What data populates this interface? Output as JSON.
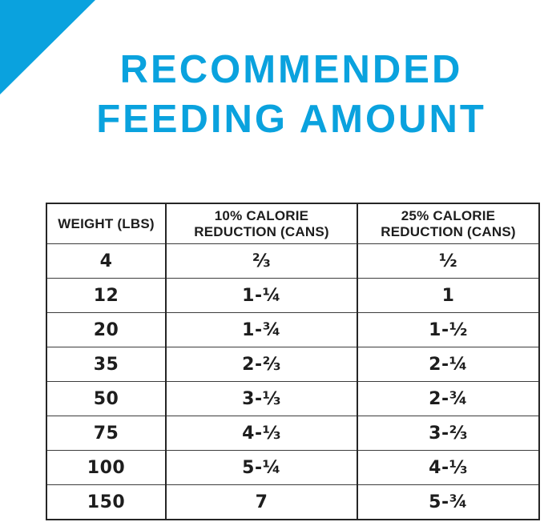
{
  "colors": {
    "accent": "#0aa2de",
    "table_text": "#1d1d1d",
    "table_border": "#262626"
  },
  "title": {
    "line1": "RECOMMENDED",
    "line2": "FEEDING AMOUNT"
  },
  "table": {
    "headers": [
      {
        "lines": [
          "WEIGHT (LBS)"
        ]
      },
      {
        "lines": [
          "10% CALORIE",
          "REDUCTION (CANS)"
        ]
      },
      {
        "lines": [
          "25% CALORIE",
          "REDUCTION (CANS)"
        ]
      }
    ],
    "rows": [
      {
        "weight": "4",
        "reduction_10": "⅔",
        "reduction_25": "½"
      },
      {
        "weight": "12",
        "reduction_10": "1-¼",
        "reduction_25": "1"
      },
      {
        "weight": "20",
        "reduction_10": "1-¾",
        "reduction_25": "1-½"
      },
      {
        "weight": "35",
        "reduction_10": "2-⅔",
        "reduction_25": "2-¼"
      },
      {
        "weight": "50",
        "reduction_10": "3-⅓",
        "reduction_25": "2-¾"
      },
      {
        "weight": "75",
        "reduction_10": "4-⅓",
        "reduction_25": "3-⅔"
      },
      {
        "weight": "100",
        "reduction_10": "5-¼",
        "reduction_25": "4-⅓"
      },
      {
        "weight": "150",
        "reduction_10": "7",
        "reduction_25": "5-¾"
      }
    ]
  }
}
